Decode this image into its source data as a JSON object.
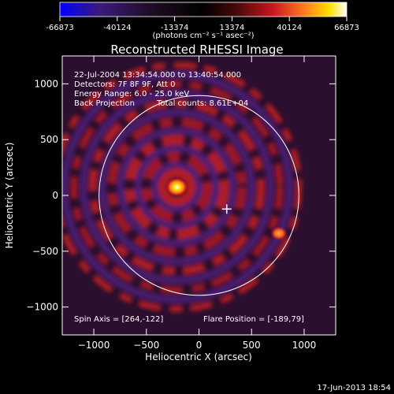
{
  "colorbar": {
    "ticks": [
      "-66873",
      "-40124",
      "-13374",
      "13374",
      "40124",
      "66873"
    ],
    "tick_values": [
      -66873,
      -40124,
      -13374,
      13374,
      40124,
      66873
    ],
    "range": [
      -66873,
      66873
    ],
    "units": "(photons cm⁻² s⁻¹ asec⁻²)",
    "colormap": [
      "#0000ff",
      "#3c1a7a",
      "#1a0a1a",
      "#000000",
      "#4a0a0a",
      "#c8141e",
      "#ff7a1e",
      "#ffe000",
      "#ffffff"
    ]
  },
  "chart_data": {
    "type": "heatmap",
    "title": "Reconstructed RHESSI Image",
    "xlabel": "Heliocentric X (arcsec)",
    "ylabel": "Heliocentric Y (arcsec)",
    "xlim": [
      -1300,
      1300
    ],
    "ylim": [
      -1250,
      1250
    ],
    "xticks": [
      -1000,
      -500,
      0,
      500,
      1000
    ],
    "yticks": [
      -1000,
      -500,
      0,
      500,
      1000
    ],
    "xtick_labels": [
      "−1000",
      "−500",
      "0",
      "500",
      "1000"
    ],
    "ytick_labels": [
      "−1000",
      "−500",
      "0",
      "500",
      "1000"
    ],
    "annotations": {
      "time_range": "22-Jul-2004 13:34:54.000 to 13:40:54.000",
      "detectors": "Detectors: 7F 8F 9F, Att 0",
      "energy": "Energy Range: 6.0 - 25.0 keV",
      "method": "Back Projection",
      "counts": "Total counts: 8.61E+04",
      "spin_axis": "Spin Axis = [264,-122]",
      "flare_position": "Flare Position = [-189,79]"
    },
    "solar_disk": {
      "center": [
        0,
        0
      ],
      "radius_arcsec": 950
    },
    "marker": {
      "type": "cross",
      "x": 264,
      "y": -122
    },
    "bright_sources": [
      {
        "x": -210,
        "y": 75,
        "level": 66873
      },
      {
        "x": 760,
        "y": -340,
        "level": 40124
      }
    ],
    "grid": false
  },
  "footer": {
    "timestamp": "17-Jun-2013 18:54"
  }
}
